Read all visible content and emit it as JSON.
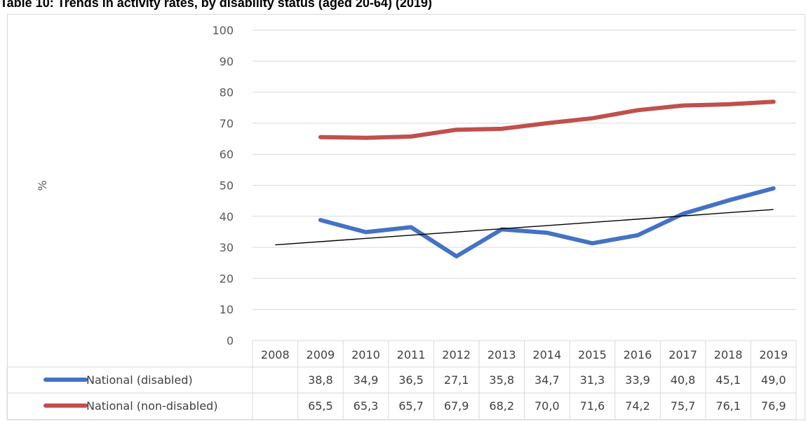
{
  "chart_data": {
    "type": "line",
    "title": "Table 10: Trends in activity rates, by disability status (aged 20-64) (2019)",
    "ylabel": "%",
    "xlabel": "",
    "ylim": [
      0,
      100
    ],
    "yticks": [
      "0",
      "10",
      "20",
      "30",
      "40",
      "50",
      "60",
      "70",
      "80",
      "90",
      "100"
    ],
    "categories": [
      "2008",
      "2009",
      "2010",
      "2011",
      "2012",
      "2013",
      "2014",
      "2015",
      "2016",
      "2017",
      "2018",
      "2019"
    ],
    "grid": true,
    "legend": "data-table",
    "series": [
      {
        "name": "National (disabled)",
        "color": "#4472C4",
        "values": [
          null,
          38.8,
          34.9,
          36.5,
          27.1,
          35.8,
          34.7,
          31.3,
          33.9,
          40.8,
          45.1,
          49.0
        ],
        "labels": [
          "",
          "38,8",
          "34,9",
          "36,5",
          "27,1",
          "35,8",
          "34,7",
          "31,3",
          "33,9",
          "40,8",
          "45,1",
          "49,0"
        ]
      },
      {
        "name": "National (non-disabled)",
        "color": "#C0504D",
        "values": [
          null,
          65.5,
          65.3,
          65.7,
          67.9,
          68.2,
          70.0,
          71.6,
          74.2,
          75.7,
          76.1,
          76.9
        ],
        "labels": [
          "",
          "65,5",
          "65,3",
          "65,7",
          "67,9",
          "68,2",
          "70,0",
          "71,6",
          "74,2",
          "75,7",
          "76,1",
          "76,9"
        ]
      }
    ],
    "trendline": {
      "series": "National (disabled)",
      "color": "#000000",
      "start": 30.8,
      "end": 42.2
    }
  }
}
